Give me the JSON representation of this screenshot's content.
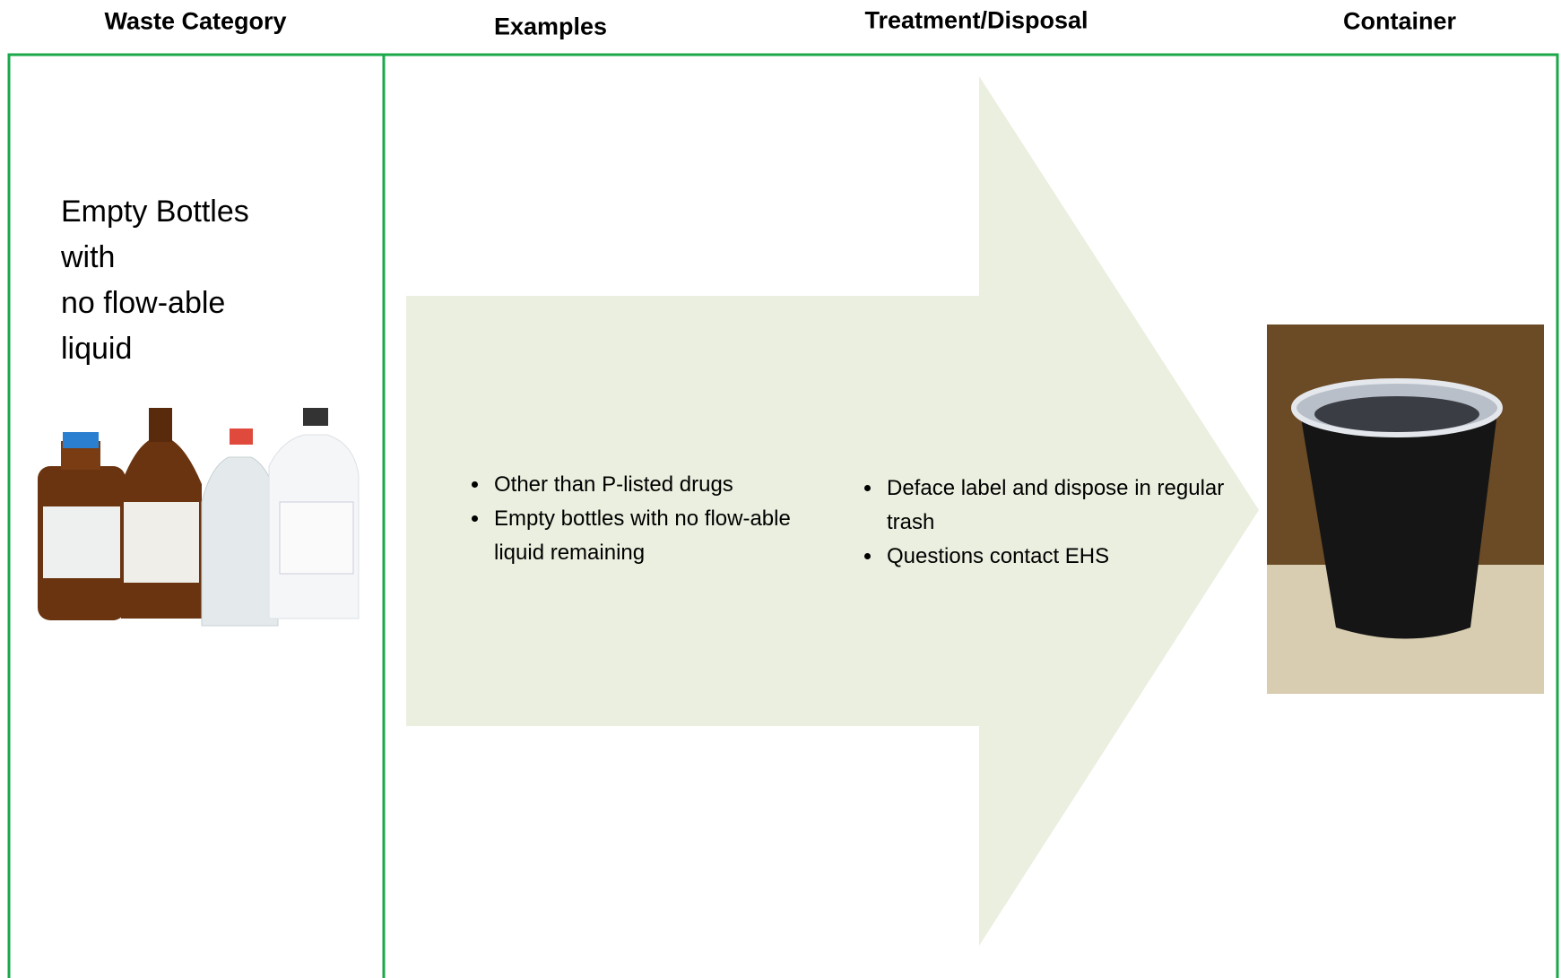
{
  "header": {
    "columns": [
      "Waste Category",
      "Examples",
      "Treatment/Disposal",
      "Container"
    ]
  },
  "category": {
    "lines": [
      "Empty Bottles",
      "with",
      "no flow-able",
      "liquid"
    ]
  },
  "examples": {
    "items": [
      "Other than P-listed drugs",
      "Empty bottles with no flow-able liquid remaining"
    ]
  },
  "treatment": {
    "items": [
      "Deface label and dispose in regular trash",
      "Questions contact EHS"
    ]
  }
}
